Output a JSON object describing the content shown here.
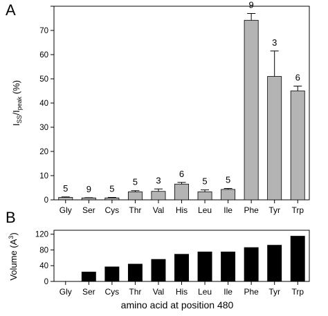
{
  "figure": {
    "panel_a_letter": "A",
    "panel_b_letter": "B",
    "shared_xlabel": "amino acid at position 480"
  },
  "chart_data": [
    {
      "panel": "A",
      "type": "bar",
      "categories": [
        "Gly",
        "Ser",
        "Cys",
        "Thr",
        "Val",
        "His",
        "Leu",
        "Ile",
        "Phe",
        "Tyr",
        "Trp"
      ],
      "values": [
        1.0,
        0.8,
        0.8,
        3.3,
        3.5,
        6.5,
        3.3,
        4.3,
        74.2,
        51.0,
        45.0
      ],
      "errors": [
        0.2,
        0.1,
        0.2,
        0.5,
        1.0,
        0.7,
        0.8,
        0.4,
        2.8,
        10.5,
        2.0
      ],
      "n_labels": [
        "5",
        "9",
        "5",
        "5",
        "3",
        "6",
        "5",
        "5",
        "9",
        "3",
        "6"
      ],
      "ylabel": {
        "main": "I",
        "sub1": "SS",
        "slash": "/I",
        "sub2": "peak",
        "unit": " (%)"
      },
      "ylim": [
        0,
        80
      ],
      "yticks": [
        0,
        10,
        20,
        30,
        40,
        50,
        60,
        70,
        80
      ],
      "ytick_labels": [
        "0",
        "10",
        "20",
        "30",
        "40",
        "50",
        "60",
        "70",
        ""
      ],
      "bar_color": "#b4b4b4",
      "grid": false
    },
    {
      "panel": "B",
      "type": "bar",
      "categories": [
        "Gly",
        "Ser",
        "Cys",
        "Thr",
        "Val",
        "His",
        "Leu",
        "Ile",
        "Phe",
        "Tyr",
        "Trp"
      ],
      "values": [
        0,
        24,
        37,
        44,
        56,
        69,
        75,
        75,
        86,
        92,
        115
      ],
      "ylabel": {
        "main": "Volume (A",
        "sup": "3",
        "close": ")"
      },
      "ylim": [
        0,
        130
      ],
      "yticks": [
        0,
        40,
        80,
        120
      ],
      "ytick_labels": [
        "0",
        "40",
        "80",
        "120"
      ],
      "bar_color": "#000000",
      "grid": false
    }
  ]
}
